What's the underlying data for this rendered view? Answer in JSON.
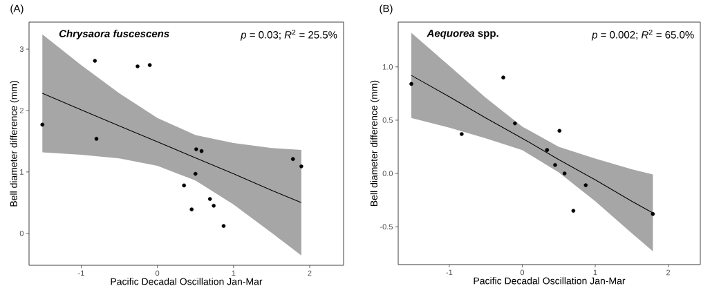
{
  "chart_data": [
    {
      "type": "scatter",
      "title": "(A)",
      "xlabel": "Pacific Decadal Oscillation Jan-Mar",
      "ylabel": "Bell diameter difference (mm)",
      "annotations": [
        "*Chrysaora fuscescens*",
        "*p* = 0.03; *R*$^{2}$ = 25.5%"
      ],
      "xlim": [
        -1.685,
        2.445
      ],
      "ylim": [
        -0.52,
        3.44
      ],
      "xticks": [
        -1,
        0,
        1,
        2
      ],
      "yticks": [
        0,
        1,
        2,
        3
      ],
      "series": [
        {
          "color": "#000000",
          "marker": "circle",
          "x": [
            -1.51,
            -0.82,
            -0.8,
            -0.26,
            -0.1,
            0.51,
            0.58,
            0.5,
            0.35,
            0.69,
            0.74,
            0.45,
            0.87,
            1.78,
            1.89
          ],
          "values": [
            1.77,
            2.81,
            1.54,
            2.72,
            2.74,
            1.37,
            1.34,
            0.97,
            0.78,
            0.56,
            0.45,
            0.39,
            0.12,
            1.21,
            1.09
          ]
        },
        {
          "type": "line",
          "color": "#000000",
          "x": [
            -1.51,
            -1,
            -0.5,
            0,
            0.5,
            1,
            1.5,
            1.89
          ],
          "values": [
            2.28,
            2.01,
            1.75,
            1.49,
            1.23,
            0.97,
            0.7,
            0.5
          ],
          "upper": [
            3.24,
            2.74,
            2.28,
            1.88,
            1.6,
            1.47,
            1.39,
            1.36
          ],
          "lower": [
            1.32,
            1.28,
            1.22,
            1.1,
            0.86,
            0.47,
            0.01,
            -0.36
          ]
        }
      ]
    },
    {
      "type": "scatter",
      "title": "(B)",
      "xlabel": "Pacific Decadal Oscillation Jan-Mar",
      "ylabel": "Bell diameter difference (mm)",
      "annotations": [
        "*Aequorea* spp.",
        "*p* = 0.002; *R*$^{2}$ = 65.0%"
      ],
      "xlim": [
        -1.7,
        2.44
      ],
      "ylim": [
        -0.855,
        1.42
      ],
      "xticks": [
        -1,
        0,
        1,
        2
      ],
      "yticks": [
        {
          "value": -0.5,
          "label": "-0.5"
        },
        {
          "value": 0,
          "label": "0.0"
        },
        {
          "value": 0.5,
          "label": "0.5"
        },
        {
          "value": 1,
          "label": "1.0"
        }
      ],
      "series": [
        {
          "color": "#000000",
          "marker": "circle",
          "x": [
            -1.52,
            -0.83,
            -0.26,
            -0.1,
            0.51,
            0.34,
            0.45,
            0.58,
            0.87,
            0.7,
            1.79
          ],
          "values": [
            0.84,
            0.37,
            0.9,
            0.47,
            0.4,
            0.22,
            0.08,
            0.0,
            -0.11,
            -0.35,
            -0.38
          ]
        },
        {
          "type": "line",
          "color": "#000000",
          "x": [
            -1.52,
            -1,
            -0.5,
            0,
            0.5,
            1,
            1.5,
            1.79
          ],
          "values": [
            0.92,
            0.72,
            0.52,
            0.33,
            0.13,
            -0.06,
            -0.26,
            -0.37
          ],
          "upper": [
            1.32,
            1.01,
            0.71,
            0.44,
            0.25,
            0.14,
            0.04,
            -0.01
          ],
          "lower": [
            0.52,
            0.43,
            0.33,
            0.22,
            0.01,
            -0.26,
            -0.56,
            -0.73
          ]
        }
      ]
    }
  ]
}
